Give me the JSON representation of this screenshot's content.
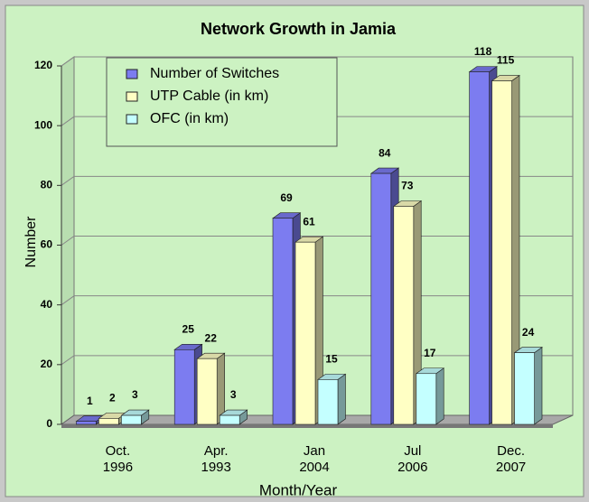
{
  "chart_data": {
    "type": "bar",
    "title": "Network Growth in Jamia",
    "x_label": "Month/Year",
    "y_label": "Number",
    "categories": [
      "Oct.\n1996",
      "Apr.\n1993",
      "Jan\n2004",
      "Jul\n2006",
      "Dec.\n2007"
    ],
    "series": [
      {
        "name": "Number of Switches",
        "color": "#7c7cf0",
        "values": [
          1,
          25,
          69,
          84,
          118
        ]
      },
      {
        "name": "UTP Cable (in km)",
        "color": "#ffffc4",
        "values": [
          2,
          22,
          61,
          73,
          115
        ]
      },
      {
        "name": "OFC (in km)",
        "color": "#c4ffff",
        "values": [
          3,
          3,
          15,
          17,
          24
        ]
      }
    ],
    "ylim": [
      0,
      120
    ],
    "yticks": [
      0,
      20,
      40,
      60,
      80,
      100,
      120
    ],
    "grid": true,
    "legend": "upper left"
  }
}
